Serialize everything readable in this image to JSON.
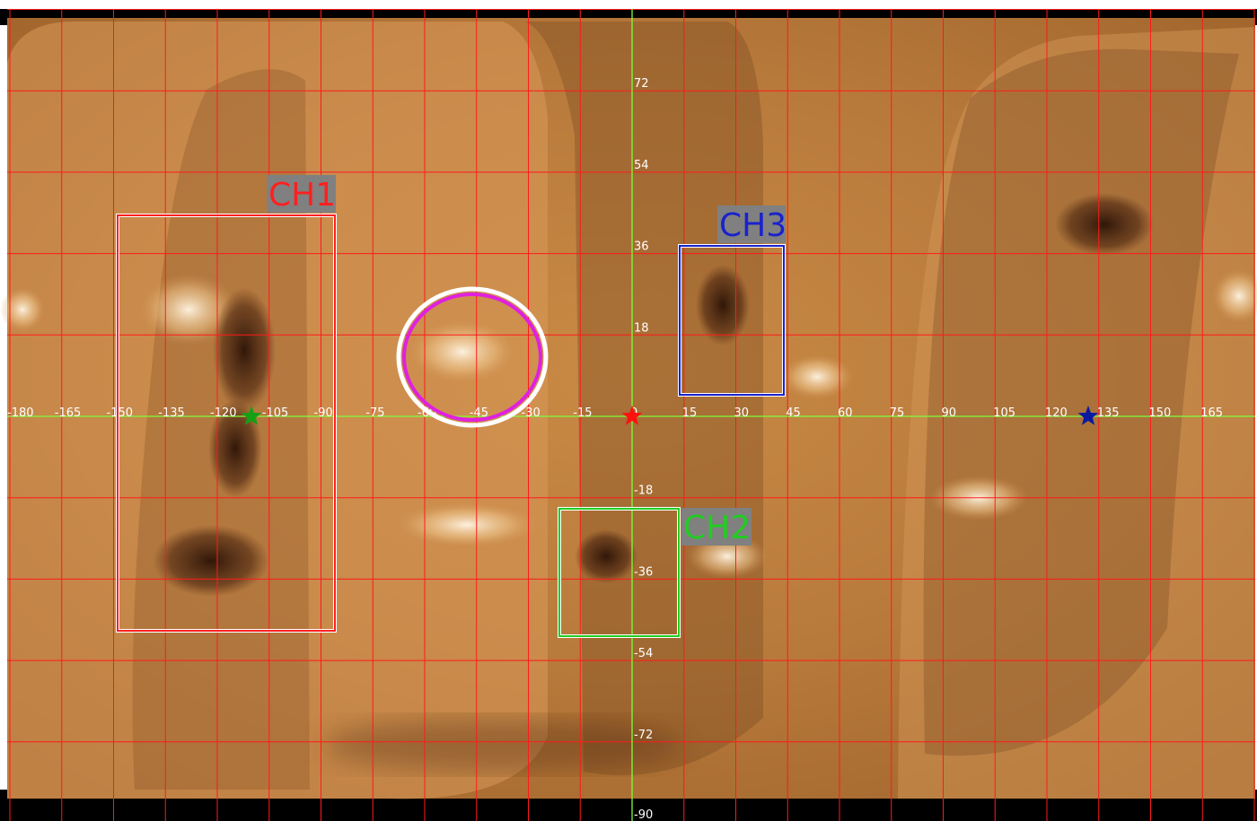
{
  "map": {
    "lon_ticks": [
      "-180",
      "-165",
      "-150",
      "-135",
      "-120",
      "-105",
      "-90",
      "-75",
      "-60",
      "-45",
      "-30",
      "-15",
      "0",
      "15",
      "30",
      "45",
      "60",
      "75",
      "90",
      "105",
      "120",
      "135",
      "150",
      "165"
    ],
    "lat_ticks": [
      "72",
      "54",
      "36",
      "18",
      "-18",
      "-36",
      "-54",
      "-72",
      "-90"
    ],
    "colors": {
      "grid": "#ff1a1a",
      "axis": "#7cff3a",
      "ch1": "#ff2020",
      "ch2": "#22cc22",
      "ch3": "#1a22cc",
      "region_circle": "#e020e0"
    }
  },
  "annotations": {
    "ch1_label": "CH1",
    "ch2_label": "CH2",
    "ch3_label": "CH3"
  },
  "markers": [
    {
      "name": "green-star",
      "color": "#14a014"
    },
    {
      "name": "red-star",
      "color": "#ff1010"
    },
    {
      "name": "blue-star",
      "color": "#0a1aa0"
    }
  ]
}
